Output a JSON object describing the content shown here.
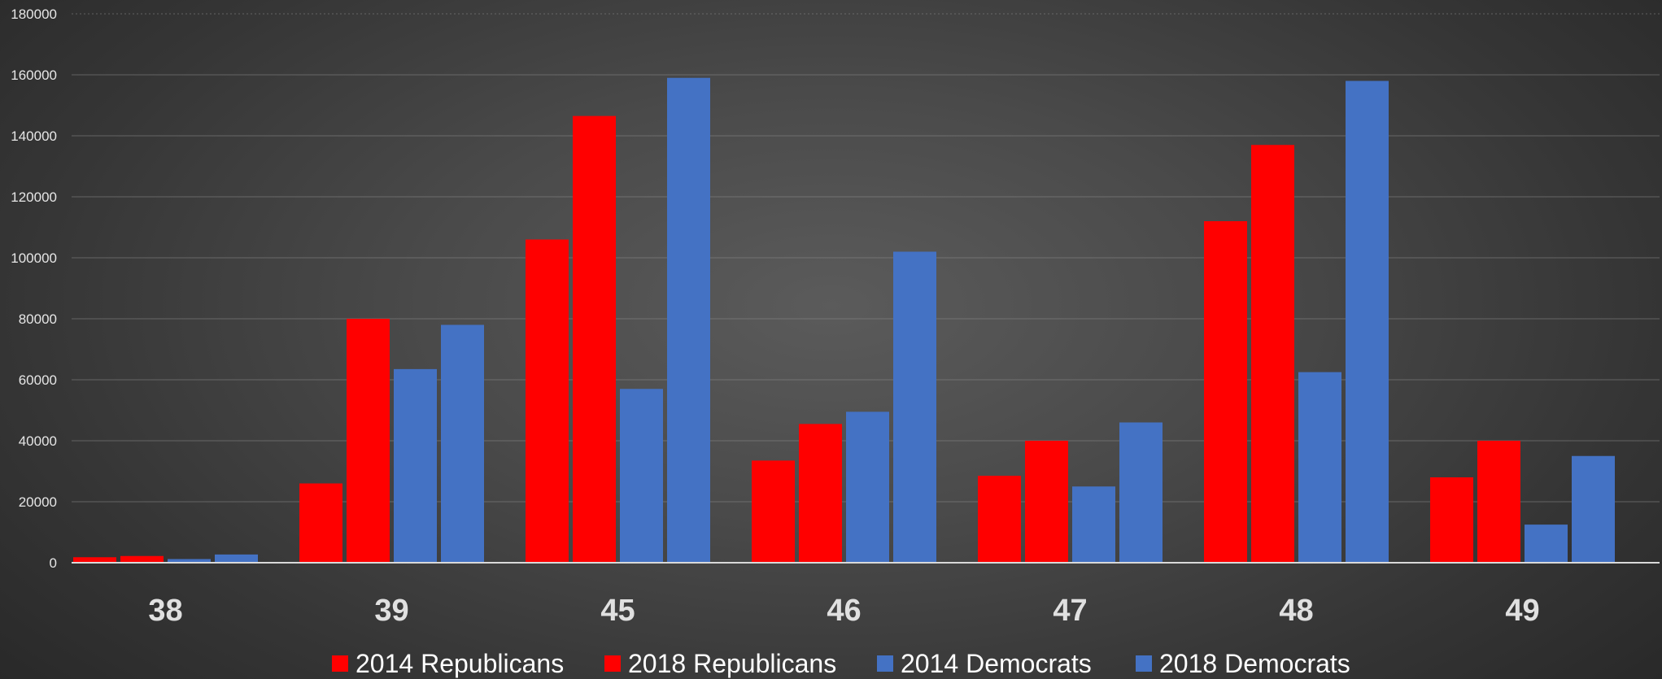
{
  "chart_data": {
    "type": "bar",
    "title": "",
    "xlabel": "",
    "ylabel": "",
    "categories": [
      "38",
      "39",
      "45",
      "46",
      "47",
      "48",
      "49"
    ],
    "series": [
      {
        "name": "2014 Republicans",
        "color": "#ff0000",
        "values": [
          1800,
          26000,
          106000,
          33500,
          28500,
          112000,
          28000
        ]
      },
      {
        "name": "2018 Republicans",
        "color": "#ff0000",
        "values": [
          2200,
          80000,
          146500,
          45500,
          40000,
          137000,
          40000
        ]
      },
      {
        "name": "2014 Democrats",
        "color": "#4472c4",
        "values": [
          1200,
          63500,
          57000,
          49500,
          25000,
          62500,
          12500
        ]
      },
      {
        "name": "2018 Democrats",
        "color": "#4472c4",
        "values": [
          2700,
          78000,
          159000,
          102000,
          46000,
          158000,
          35000
        ]
      }
    ],
    "ylim": [
      0,
      180000
    ],
    "yticks": [
      "0",
      "20000",
      "40000",
      "60000",
      "80000",
      "100000",
      "120000",
      "140000",
      "160000",
      "180000"
    ],
    "grid": true,
    "legend_position": "bottom"
  }
}
